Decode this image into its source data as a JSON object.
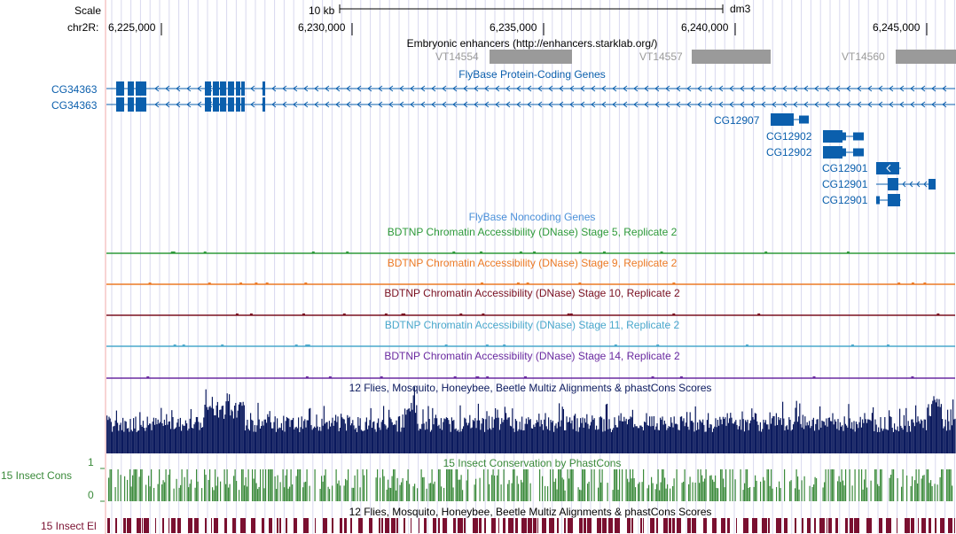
{
  "ruler": {
    "scale_label": "Scale",
    "kb_label": "10 kb",
    "assembly": "dm3",
    "chrom_label": "chr2R:",
    "ticks": [
      "6,225,000",
      "6,230,000",
      "6,235,000",
      "6,240,000",
      "6,245,000"
    ]
  },
  "tracks": {
    "enhancers": {
      "title": "Embryonic enhancers (http://enhancers.starklab.org/)",
      "items": [
        "VT14554",
        "VT14557",
        "VT14560"
      ]
    },
    "protein_coding": {
      "title": "FlyBase Protein-Coding Genes",
      "genes": [
        "CG34363",
        "CG34363",
        "CG12907",
        "CG12902",
        "CG12902",
        "CG12901",
        "CG12901",
        "CG12901"
      ]
    },
    "noncoding": {
      "title": "FlyBase Noncoding Genes"
    },
    "dnase": [
      {
        "title": "BDTNP Chromatin Accessibility (DNase) Stage 5, Replicate 2",
        "color": "#2e9a3a"
      },
      {
        "title": "BDTNP Chromatin Accessibility (DNase) Stage 9, Replicate 2",
        "color": "#ec7a25"
      },
      {
        "title": "BDTNP Chromatin Accessibility (DNase) Stage 10, Replicate 2",
        "color": "#7a1020"
      },
      {
        "title": "BDTNP Chromatin Accessibility (DNase) Stage 11, Replicate 2",
        "color": "#4aa8cc"
      },
      {
        "title": "BDTNP Chromatin Accessibility (DNase) Stage 14, Replicate 2",
        "color": "#6a2aa0"
      }
    ],
    "multiz": {
      "title": "12 Flies, Mosquito, Honeybee, Beetle Multiz Alignments & phastCons Scores",
      "color": "#0b1a5e"
    },
    "phastcons": {
      "title": "15 Insect Conservation by PhastCons",
      "side_label": "15 Insect Cons",
      "ymax": "1",
      "ymin": "0",
      "color": "#3a8a3a"
    },
    "elements": {
      "title": "12 Flies, Mosquito, Honeybee, Beetle Multiz Alignments & phastCons Scores",
      "side_label": "15 Insect El",
      "color": "#7a1030"
    }
  },
  "colors": {
    "gene": "#0b5fad",
    "enhancer": "#9a9a9a",
    "grid": "#d8d8ee",
    "cursor": "#f2aaaa"
  }
}
